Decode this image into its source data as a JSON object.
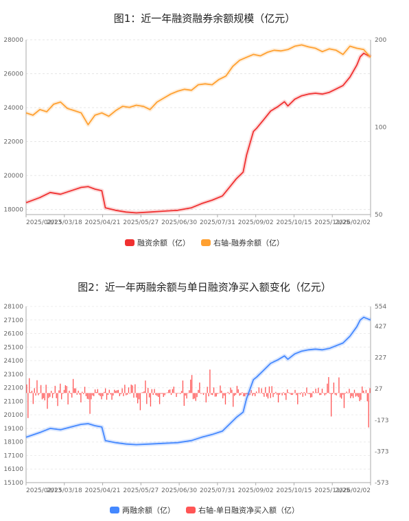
{
  "chart_data": [
    {
      "type": "line",
      "title": "图1：近一年融资融券余额规模（亿元）",
      "x_ticks": [
        "2025/02/13",
        "2025/03/18",
        "2025/04/21",
        "2025/05/27",
        "2025/06/30",
        "2025/07/31",
        "2025/09/02",
        "2025/10/15",
        "2025/11/25",
        "2026/02/02"
      ],
      "left_axis": {
        "ticks": [
          18000,
          20000,
          22000,
          24000,
          26000,
          28000
        ],
        "range": [
          17700,
          28000
        ]
      },
      "right_axis": {
        "ticks": [
          50,
          100,
          200
        ],
        "range": [
          50,
          200
        ],
        "scale": "log"
      },
      "series": [
        {
          "name": "融资余额（亿）",
          "axis": "left",
          "color": "#f03030",
          "points": [
            [
              0,
              18400
            ],
            [
              4,
              18700
            ],
            [
              7,
              19000
            ],
            [
              10,
              18900
            ],
            [
              13,
              19100
            ],
            [
              16,
              19300
            ],
            [
              18,
              19350
            ],
            [
              20,
              19200
            ],
            [
              22,
              19100
            ],
            [
              23,
              18100
            ],
            [
              26,
              17950
            ],
            [
              29,
              17850
            ],
            [
              32,
              17800
            ],
            [
              36,
              17850
            ],
            [
              40,
              17900
            ],
            [
              44,
              17950
            ],
            [
              48,
              18100
            ],
            [
              51,
              18350
            ],
            [
              54,
              18550
            ],
            [
              57,
              18800
            ],
            [
              59,
              19300
            ],
            [
              61,
              19800
            ],
            [
              63,
              20200
            ],
            [
              64,
              21200
            ],
            [
              66,
              22600
            ],
            [
              67,
              22800
            ],
            [
              69,
              23300
            ],
            [
              71,
              23800
            ],
            [
              73,
              24050
            ],
            [
              75,
              24350
            ],
            [
              76,
              24100
            ],
            [
              78,
              24500
            ],
            [
              80,
              24700
            ],
            [
              82,
              24800
            ],
            [
              84,
              24850
            ],
            [
              86,
              24800
            ],
            [
              88,
              24900
            ],
            [
              90,
              25100
            ],
            [
              92,
              25300
            ],
            [
              94,
              25800
            ],
            [
              96,
              26500
            ],
            [
              97,
              27000
            ],
            [
              98,
              27200
            ],
            [
              99,
              27100
            ],
            [
              100,
              27000
            ]
          ]
        },
        {
          "name": "右轴-融券余额（亿）",
          "axis": "right",
          "color": "#ffa030",
          "points": [
            [
              0,
              112
            ],
            [
              2,
              110
            ],
            [
              4,
              115
            ],
            [
              6,
              113
            ],
            [
              8,
              120
            ],
            [
              10,
              122
            ],
            [
              12,
              116
            ],
            [
              14,
              114
            ],
            [
              16,
              112
            ],
            [
              18,
              102
            ],
            [
              20,
              110
            ],
            [
              22,
              112
            ],
            [
              24,
              109
            ],
            [
              26,
              114
            ],
            [
              28,
              118
            ],
            [
              30,
              117
            ],
            [
              32,
              119
            ],
            [
              34,
              118
            ],
            [
              36,
              115
            ],
            [
              38,
              122
            ],
            [
              40,
              126
            ],
            [
              42,
              130
            ],
            [
              44,
              133
            ],
            [
              46,
              135
            ],
            [
              48,
              134
            ],
            [
              50,
              140
            ],
            [
              52,
              141
            ],
            [
              54,
              140
            ],
            [
              56,
              146
            ],
            [
              58,
              150
            ],
            [
              60,
              162
            ],
            [
              62,
              170
            ],
            [
              64,
              174
            ],
            [
              66,
              178
            ],
            [
              68,
              176
            ],
            [
              70,
              181
            ],
            [
              72,
              184
            ],
            [
              74,
              183
            ],
            [
              76,
              185
            ],
            [
              78,
              190
            ],
            [
              80,
              192
            ],
            [
              82,
              189
            ],
            [
              84,
              187
            ],
            [
              86,
              182
            ],
            [
              88,
              186
            ],
            [
              90,
              184
            ],
            [
              92,
              178
            ],
            [
              94,
              190
            ],
            [
              96,
              187
            ],
            [
              98,
              185
            ],
            [
              100,
              174
            ]
          ]
        }
      ],
      "legend": [
        "融资余额（亿）",
        "右轴-融券余额（亿）"
      ]
    },
    {
      "type": "bar+line",
      "title": "图2：近一年两融余额与单日融资净买入额变化（亿元）",
      "x_ticks": [
        "2025/02/13",
        "2025/03/18",
        "2025/04/21",
        "2025/05/27",
        "2025/06/30",
        "2025/07/31",
        "2025/09/02",
        "2025/10/15",
        "2025/11/25",
        "2026/02/02"
      ],
      "left_axis": {
        "ticks": [
          15100,
          16100,
          17100,
          18100,
          19100,
          20100,
          21100,
          22100,
          23100,
          24100,
          25100,
          26100,
          27100,
          28100
        ],
        "range": [
          15100,
          28100
        ]
      },
      "right_axis": {
        "ticks": [
          -573,
          -373,
          -173,
          27,
          227,
          427,
          554
        ],
        "range": [
          -573,
          554
        ]
      },
      "series": [
        {
          "name": "两融余额（亿）",
          "axis": "left",
          "color": "#4488ff",
          "points": [
            [
              0,
              18450
            ],
            [
              4,
              18800
            ],
            [
              7,
              19100
            ],
            [
              10,
              19000
            ],
            [
              13,
              19200
            ],
            [
              16,
              19400
            ],
            [
              18,
              19450
            ],
            [
              20,
              19300
            ],
            [
              22,
              19200
            ],
            [
              23,
              18200
            ],
            [
              26,
              18050
            ],
            [
              29,
              17950
            ],
            [
              32,
              17900
            ],
            [
              36,
              17950
            ],
            [
              40,
              18000
            ],
            [
              44,
              18050
            ],
            [
              48,
              18200
            ],
            [
              51,
              18450
            ],
            [
              54,
              18650
            ],
            [
              57,
              18900
            ],
            [
              59,
              19400
            ],
            [
              61,
              19900
            ],
            [
              63,
              20300
            ],
            [
              64,
              21300
            ],
            [
              66,
              22700
            ],
            [
              67,
              22900
            ],
            [
              69,
              23400
            ],
            [
              71,
              23900
            ],
            [
              73,
              24150
            ],
            [
              75,
              24450
            ],
            [
              76,
              24200
            ],
            [
              78,
              24600
            ],
            [
              80,
              24800
            ],
            [
              82,
              24900
            ],
            [
              84,
              24950
            ],
            [
              86,
              24900
            ],
            [
              88,
              25000
            ],
            [
              90,
              25200
            ],
            [
              92,
              25400
            ],
            [
              94,
              25900
            ],
            [
              96,
              26600
            ],
            [
              97,
              27100
            ],
            [
              98,
              27300
            ],
            [
              99,
              27200
            ],
            [
              100,
              27100
            ]
          ]
        },
        {
          "name": "右轴-单日融资净买入额（亿）",
          "axis": "right",
          "color": "#ff5555",
          "type": "bar",
          "values": [
            55,
            -160,
            95,
            5,
            15,
            -70,
            31,
            -16,
            82,
            -14,
            -4,
            51,
            -40,
            -33,
            -47,
            53,
            -101,
            -32,
            -24,
            14,
            -32,
            -6,
            46,
            -33,
            -83,
            17,
            60,
            -40,
            -5,
            20,
            50,
            45,
            -73,
            15,
            -5,
            -29,
            90,
            30,
            30,
            -11,
            15,
            -10,
            -60,
            8,
            -7,
            40,
            -20,
            -37,
            -40,
            -133,
            -40,
            -15,
            -20,
            23,
            6,
            25,
            -13,
            -20,
            -40,
            -20,
            7,
            30,
            -43,
            -12,
            21,
            -9,
            -43,
            -16,
            21,
            14,
            18,
            20,
            -20,
            -8,
            30,
            -20,
            53,
            -14,
            -10,
            36,
            -5,
            54,
            49,
            -30,
            56,
            -29,
            -66,
            -40,
            -110,
            3,
            6,
            11,
            80,
            -70,
            33,
            -28,
            -86,
            25,
            -12,
            26,
            -13,
            -18,
            -25,
            -71,
            -5,
            -5,
            -25,
            -14,
            1,
            4,
            20,
            23,
            -12,
            25,
            41,
            2,
            -25,
            -4,
            0,
            -6,
            13,
            80,
            -82,
            -16,
            -35,
            1,
            18,
            86,
            115,
            -39,
            -35,
            -50,
            -26,
            20,
            67,
            -5,
            -2,
            -12,
            0,
            -60,
            40,
            -21,
            150,
            -11,
            -13,
            36,
            -23,
            -22,
            -6,
            -2,
            48,
            15,
            -34,
            -16,
            -73,
            -1,
            7,
            -8,
            35,
            21,
            -88,
            -18,
            -11,
            46,
            24,
            -17,
            -12,
            5,
            -21,
            -21,
            -9,
            -6,
            -15,
            -13,
            19,
            -18,
            -7,
            -20,
            10,
            -2,
            36,
            -1,
            30,
            -6,
            -24,
            38,
            -23,
            -35,
            42,
            -32,
            44,
            -26,
            -7,
            7,
            -10,
            -60,
            -11,
            1,
            -15,
            5,
            -13,
            -44,
            23,
            4,
            -5,
            -12,
            -12,
            -2,
            20,
            -13,
            -72,
            -4,
            -9,
            5,
            -24,
            6,
            -17,
            35,
            -5,
            -7,
            -29,
            -26,
            11,
            1,
            28,
            4,
            34,
            -13,
            -12,
            28,
            1,
            -15,
            -8,
            60,
            102,
            -5,
            -150,
            -7,
            67,
            -10,
            -15,
            2,
            100,
            -28,
            -36,
            -10,
            -96,
            -4,
            9,
            -3,
            27,
            -33,
            -20,
            -32,
            21,
            -23,
            -18,
            -26,
            -52,
            -44,
            42,
            15,
            -2,
            20,
            -53,
            -220,
            31
          ]
        }
      ],
      "legend": [
        "两融余额（亿）",
        "右轴-单日融资净买入额（亿）"
      ]
    }
  ]
}
